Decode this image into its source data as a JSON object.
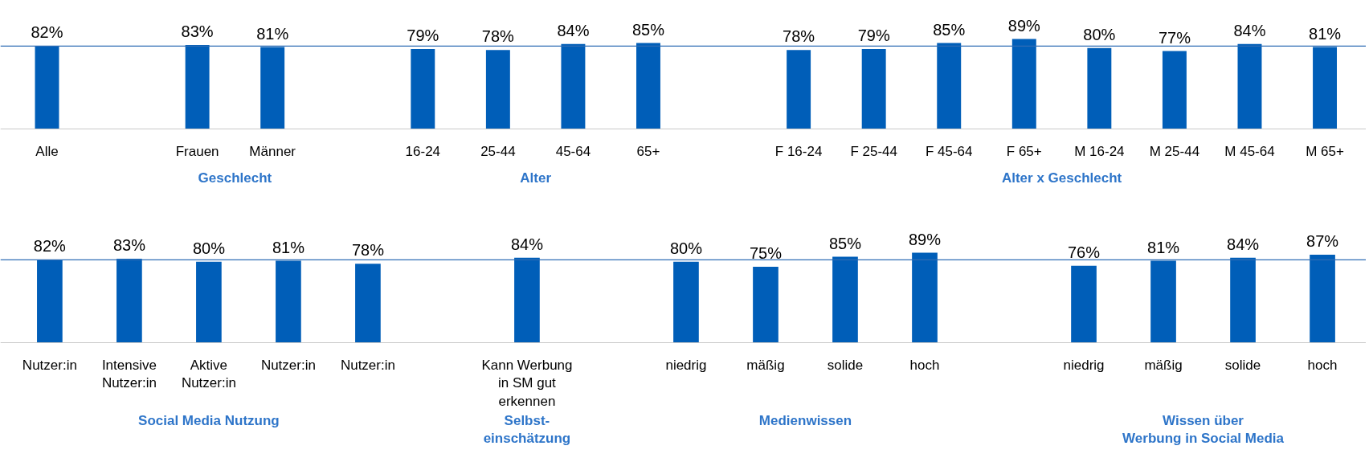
{
  "chart_data": [
    {
      "type": "bar",
      "categories": [
        "Alle",
        null,
        "Frauen",
        "Männer",
        null,
        "16-24",
        "25-44",
        "45-64",
        "65+",
        null,
        "F 16-24",
        "F 25-44",
        "F 45-64",
        "F 65+",
        "M 16-24",
        "M 25-44",
        "M 45-64",
        "M 65+"
      ],
      "values": [
        82,
        null,
        83,
        81,
        null,
        79,
        78,
        84,
        85,
        null,
        78,
        79,
        85,
        89,
        80,
        77,
        84,
        81
      ],
      "color": "#005eb8",
      "value_labels": [
        "82%",
        null,
        "83%",
        "81%",
        null,
        "79%",
        "78%",
        "84%",
        "85%",
        null,
        "78%",
        "79%",
        "85%",
        "89%",
        "80%",
        "77%",
        "84%",
        "81%"
      ],
      "ref_lines": [
        {
          "axis": "y",
          "value": 82,
          "color": "#2f6db5"
        }
      ],
      "annotations": [
        "Geschlecht",
        "Alter",
        "Alter x Geschlecht"
      ]
    },
    {
      "type": "bar",
      "categories": [
        "Nutzer:in",
        "Intensive\nNutzer:in",
        "Aktive\nNutzer:in",
        "Nutzer:in",
        "Nutzer:in",
        null,
        "Kann Werbung\nin SM gut\nerkennen",
        null,
        "niedrig",
        "mäßig",
        "solide",
        "hoch",
        null,
        "niedrig",
        "mäßig",
        "solide",
        "hoch"
      ],
      "values": [
        82,
        83,
        80,
        81,
        78,
        null,
        84,
        null,
        80,
        75,
        85,
        89,
        null,
        76,
        81,
        84,
        87
      ],
      "color": "#005eb8",
      "value_labels": [
        "82%",
        "83%",
        "80%",
        "81%",
        "78%",
        null,
        "84%",
        null,
        "80%",
        "75%",
        "85%",
        "89%",
        null,
        "76%",
        "81%",
        "84%",
        "87%"
      ],
      "ref_lines": [
        {
          "axis": "y",
          "value": 82,
          "color": "#2f6db5"
        }
      ],
      "annotations": [
        "Social Media Nutzung",
        "Selbst-\neinschätzung",
        "Medienwissen",
        "Wissen über\nWerbung in Social Media"
      ]
    }
  ]
}
